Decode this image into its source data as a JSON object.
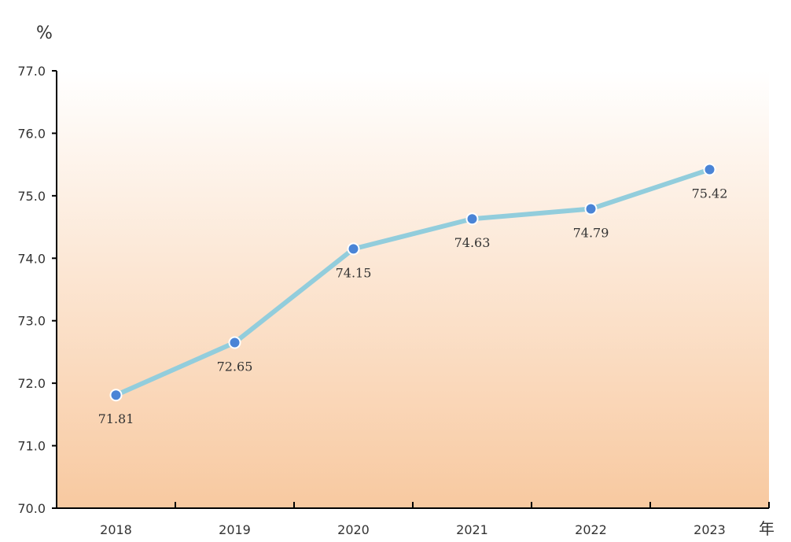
{
  "chart_data": {
    "type": "line",
    "ylabel": "%",
    "xlabel": "年",
    "x": [
      "2018",
      "2019",
      "2020",
      "2021",
      "2022",
      "2023"
    ],
    "values": [
      71.81,
      72.65,
      74.15,
      74.63,
      74.79,
      75.42
    ],
    "value_labels": [
      "71.81",
      "72.65",
      "74.15",
      "74.63",
      "74.79",
      "75.42"
    ],
    "label_position": [
      "below",
      "below",
      "below",
      "below",
      "below",
      "below"
    ],
    "ylim": [
      70.0,
      77.0
    ],
    "yticks": [
      70.0,
      71.0,
      72.0,
      73.0,
      74.0,
      75.0,
      76.0,
      77.0
    ],
    "ytick_labels": [
      "70.0",
      "71.0",
      "72.0",
      "73.0",
      "74.0",
      "75.0",
      "76.0",
      "77.0"
    ],
    "grid": false,
    "legend": "none",
    "colors": {
      "line": "#92cddc",
      "marker": "#4a84d6",
      "marker_edge": "#ffffff",
      "background_top": "#ffffff",
      "background_bottom": "#f8c9a0"
    }
  }
}
